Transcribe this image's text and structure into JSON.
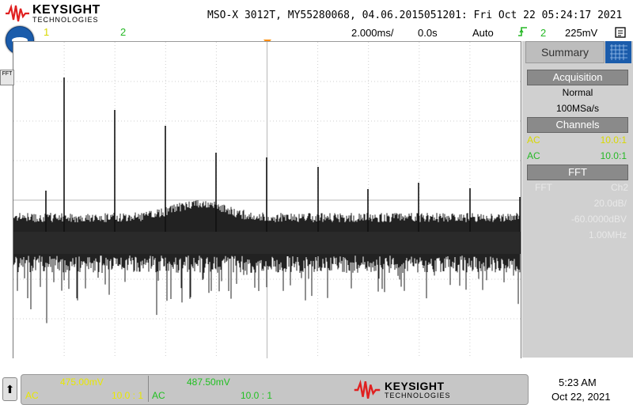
{
  "header": {
    "brand": "KEYSIGHT",
    "brand_sub": "TECHNOLOGIES",
    "title": "MSO-X 3012T, MY55280068, 04.06.2015051201: Fri Oct 22 05:24:17 2021"
  },
  "channels_top": {
    "ch1": "1",
    "ch2": "2"
  },
  "status_bar": {
    "timebase": "2.000ms/",
    "delay": "0.0s",
    "trigger_mode": "Auto",
    "trigger_channel": "2",
    "trigger_level": "225mV"
  },
  "grid_tab": "FFT",
  "panel": {
    "tab_label": "Summary",
    "acquisition": {
      "heading": "Acquisition",
      "mode": "Normal",
      "rate": "100MSa/s"
    },
    "channels": {
      "heading": "Channels",
      "rows": [
        {
          "coupling": "AC",
          "probe": "10.0:1"
        },
        {
          "coupling": "AC",
          "probe": "10.0:1"
        }
      ]
    },
    "fft": {
      "heading": "FFT",
      "source_label": "FFT",
      "source": "Ch2",
      "scale": "20.0dB/",
      "offset": "-60.0000dBV",
      "span": "1.00MHz"
    }
  },
  "bottom": {
    "ch1": {
      "scale": "475.00mV",
      "coupling": "AC",
      "probe": "10.0 : 1"
    },
    "ch2": {
      "scale": "487.50mV",
      "coupling": "AC",
      "probe": "10.0 : 1"
    },
    "brand": "KEYSIGHT",
    "brand_sub": "TECHNOLOGIES",
    "time": "5:23 AM",
    "date": "Oct 22, 2021"
  },
  "colors": {
    "ch1": "#d8d800",
    "ch2": "#25b825",
    "trigger_marker": "#ff8c00",
    "accent_blue": "#1b5cab",
    "logo_red": "#e02020"
  },
  "icons": {
    "menu": "main-menu-icon",
    "trigger": "trigger-edge-icon",
    "stop": "stop-icon",
    "scroll_up": "up-arrow-icon"
  }
}
